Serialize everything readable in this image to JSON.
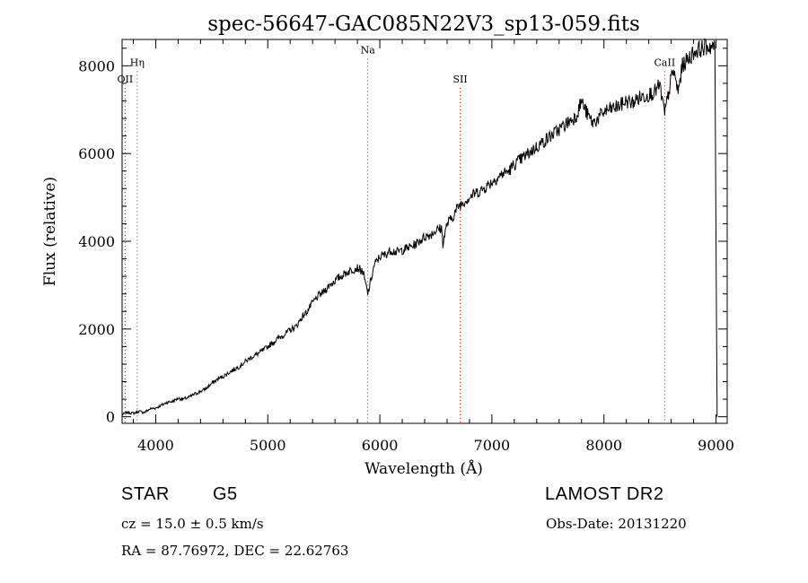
{
  "chart_data": {
    "type": "line",
    "title": "spec-56647-GAC085N22V3_sp13-059.fits",
    "xlabel": "Wavelength (Å)",
    "ylabel": "Flux (relative)",
    "xlim": [
      3700,
      9100
    ],
    "ylim": [
      -150,
      8600
    ],
    "x_ticks": [
      4000,
      5000,
      6000,
      7000,
      8000,
      9000
    ],
    "y_ticks": [
      0,
      2000,
      4000,
      6000,
      8000
    ],
    "grid": false,
    "line_color": "#000000",
    "marker_color": "#cc0000",
    "spectral_lines": [
      {
        "label": "Hη",
        "wavelength": 3835,
        "label_y": 8000
      },
      {
        "label": "OII",
        "wavelength": 3727,
        "label_y": 7620
      },
      {
        "label": "Na",
        "wavelength": 5893,
        "label_y": 8280
      },
      {
        "label": "SII",
        "wavelength": 6717,
        "label_y": 7620
      },
      {
        "label": "CaII",
        "wavelength": 8542,
        "label_y": 8000
      }
    ],
    "series": [
      {
        "x": [
          3700,
          3750,
          3800,
          3850,
          3900,
          3950,
          4000,
          4050,
          4100,
          4150,
          4200,
          4250,
          4300,
          4350,
          4400,
          4450,
          4500,
          4550,
          4600,
          4650,
          4700,
          4750,
          4800,
          4850,
          4900,
          4950,
          5000,
          5050,
          5100,
          5150,
          5200,
          5250,
          5300,
          5350,
          5400,
          5450,
          5500,
          5550,
          5600,
          5650,
          5700,
          5750,
          5800,
          5850,
          5893,
          5950,
          6000,
          6050,
          6100,
          6150,
          6200,
          6250,
          6300,
          6350,
          6400,
          6450,
          6500,
          6550,
          6563,
          6600,
          6650,
          6700,
          6750,
          6800,
          6850,
          6900,
          6950,
          7000,
          7050,
          7100,
          7150,
          7200,
          7250,
          7300,
          7350,
          7400,
          7450,
          7500,
          7550,
          7600,
          7650,
          7700,
          7750,
          7800,
          7850,
          7900,
          7950,
          8000,
          8050,
          8100,
          8150,
          8200,
          8250,
          8300,
          8350,
          8400,
          8450,
          8498,
          8542,
          8600,
          8620,
          8662,
          8700,
          8750,
          8800,
          8850,
          8900,
          8950,
          8990,
          9000,
          9010
        ],
        "y": [
          50,
          100,
          80,
          120,
          100,
          180,
          200,
          260,
          330,
          350,
          420,
          400,
          450,
          520,
          580,
          640,
          760,
          850,
          920,
          1000,
          1080,
          1150,
          1260,
          1350,
          1420,
          1500,
          1600,
          1700,
          1800,
          1880,
          1980,
          2050,
          2250,
          2400,
          2600,
          2750,
          2850,
          3000,
          3100,
          3200,
          3280,
          3350,
          3400,
          3300,
          2800,
          3450,
          3650,
          3700,
          3800,
          3750,
          3800,
          3850,
          3900,
          4000,
          4100,
          4150,
          4250,
          4300,
          3950,
          4400,
          4550,
          4800,
          4900,
          5000,
          5100,
          5150,
          5250,
          5350,
          5450,
          5550,
          5600,
          5750,
          5850,
          5950,
          6050,
          6150,
          6250,
          6350,
          6450,
          6550,
          6650,
          6750,
          6850,
          7200,
          6900,
          6700,
          6800,
          6950,
          7000,
          7050,
          7100,
          7200,
          7150,
          7250,
          7300,
          7350,
          7400,
          7550,
          6900,
          7700,
          7900,
          7400,
          8000,
          8150,
          8300,
          8380,
          8420,
          8450,
          8400,
          4200,
          0
        ]
      }
    ]
  },
  "info": {
    "object_class": "STAR",
    "subclass": "G5",
    "survey": "LAMOST DR2",
    "cz": "cz = 15.0 ± 0.5 km/s",
    "obs_date": "Obs-Date: 20131220",
    "coords": "RA =  87.76972, DEC =  22.62763"
  }
}
